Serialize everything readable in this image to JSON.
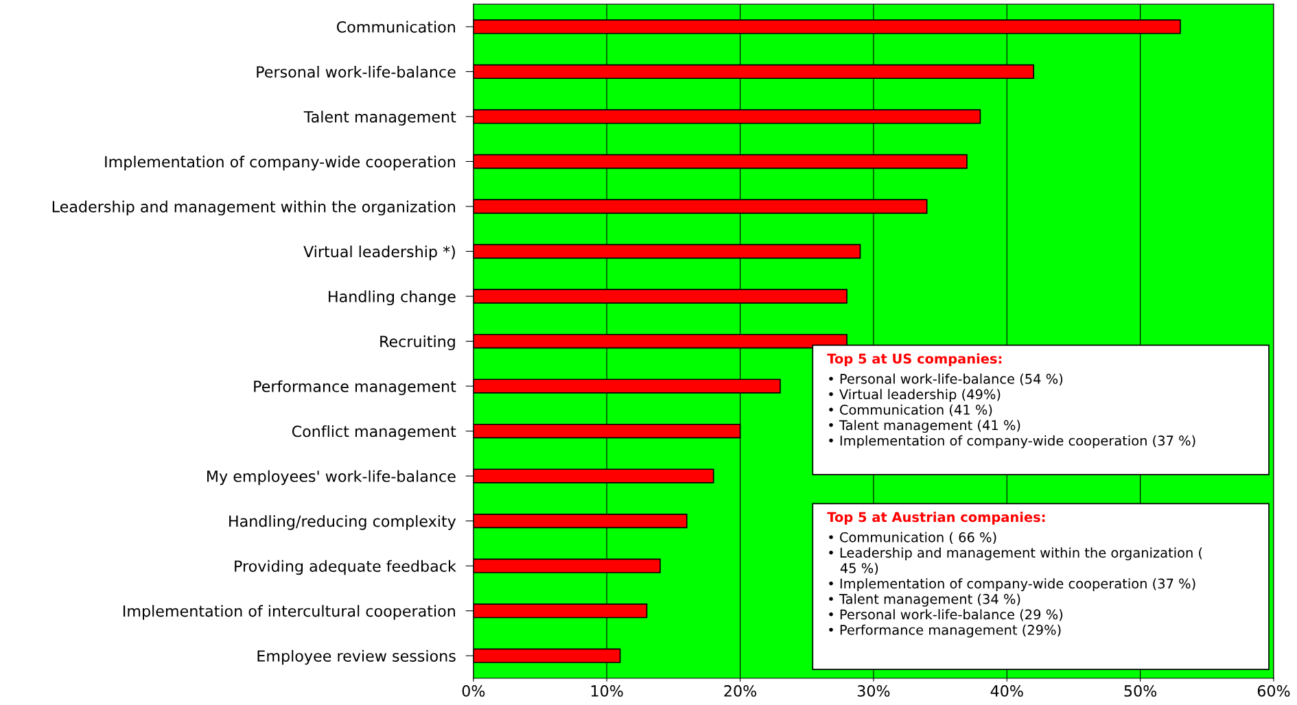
{
  "chart_data": {
    "type": "bar",
    "orientation": "horizontal",
    "categories": [
      "Communication",
      "Personal work-life-balance",
      "Talent management",
      "Implementation of company-wide cooperation",
      "Leadership and management within the organization",
      "Virtual leadership *)",
      "Handling change",
      "Recruiting",
      "Performance management",
      "Conflict management",
      "My employees' work-life-balance",
      "Handling/reducing complexity",
      "Providing adequate feedback",
      "Implementation of intercultural cooperation",
      "Employee review sessions"
    ],
    "values": [
      53,
      42,
      38,
      37,
      34,
      29,
      28,
      28,
      23,
      20,
      18,
      16,
      14,
      13,
      11
    ],
    "color": "#ff0000",
    "xlim": [
      0,
      60
    ],
    "xticks": [
      {
        "value": 0,
        "label": "0%"
      },
      {
        "value": 10,
        "label": "10%"
      },
      {
        "value": 20,
        "label": "20%"
      },
      {
        "value": 30,
        "label": "30%"
      },
      {
        "value": 40,
        "label": "40%"
      },
      {
        "value": 50,
        "label": "50%"
      },
      {
        "value": 60,
        "label": "60%"
      }
    ],
    "grid": "x",
    "legend": false,
    "annotations": [
      "Top 5 at US companies:\n• Personal work-life-balance (54 %)\n• Virtual leadership (49%)\n• Communication (41 %)\n• Talent management (41 %)\n• Implementation of company-wide cooperation (37 %)",
      "Top 5 at Austrian companies:\n• Communication ( 66 %)\n• Leadership and management within the organization (\n   45 %)\n• Implementation of company-wide cooperation (37 %)\n• Talent management (34 %)\n• Personal work-life-balance (29 %)\n• Performance management (29%)"
    ]
  }
}
